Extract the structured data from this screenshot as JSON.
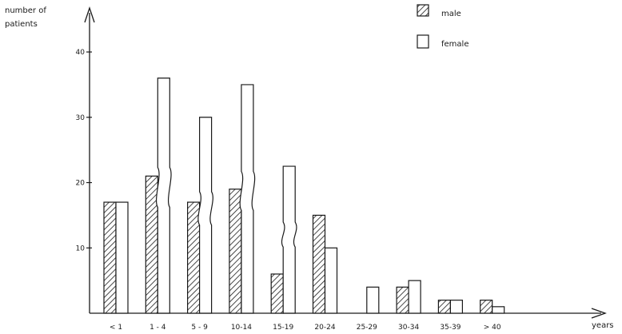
{
  "chart_data": {
    "type": "bar",
    "ylabel": [
      "number of",
      "patients"
    ],
    "xlabel": "years",
    "categories": [
      "< 1",
      "1 - 4",
      "5 - 9",
      "10-14",
      "15-19",
      "20-24",
      "25-29",
      "30-34",
      "35-39",
      "> 40"
    ],
    "series": [
      {
        "name": "male",
        "pattern": "hatched",
        "values": [
          17,
          21,
          17,
          19,
          6,
          15,
          0,
          4,
          2,
          2
        ]
      },
      {
        "name": "female",
        "pattern": "open",
        "values": [
          17,
          36,
          30,
          35,
          22.5,
          10,
          4,
          5,
          2,
          1
        ]
      }
    ],
    "broken_bars": {
      "female": [
        1,
        2,
        3,
        4
      ]
    },
    "yticks": [
      10,
      20,
      30,
      40
    ],
    "ylim": [
      0,
      46
    ],
    "legend": "top-right",
    "grid": false
  }
}
